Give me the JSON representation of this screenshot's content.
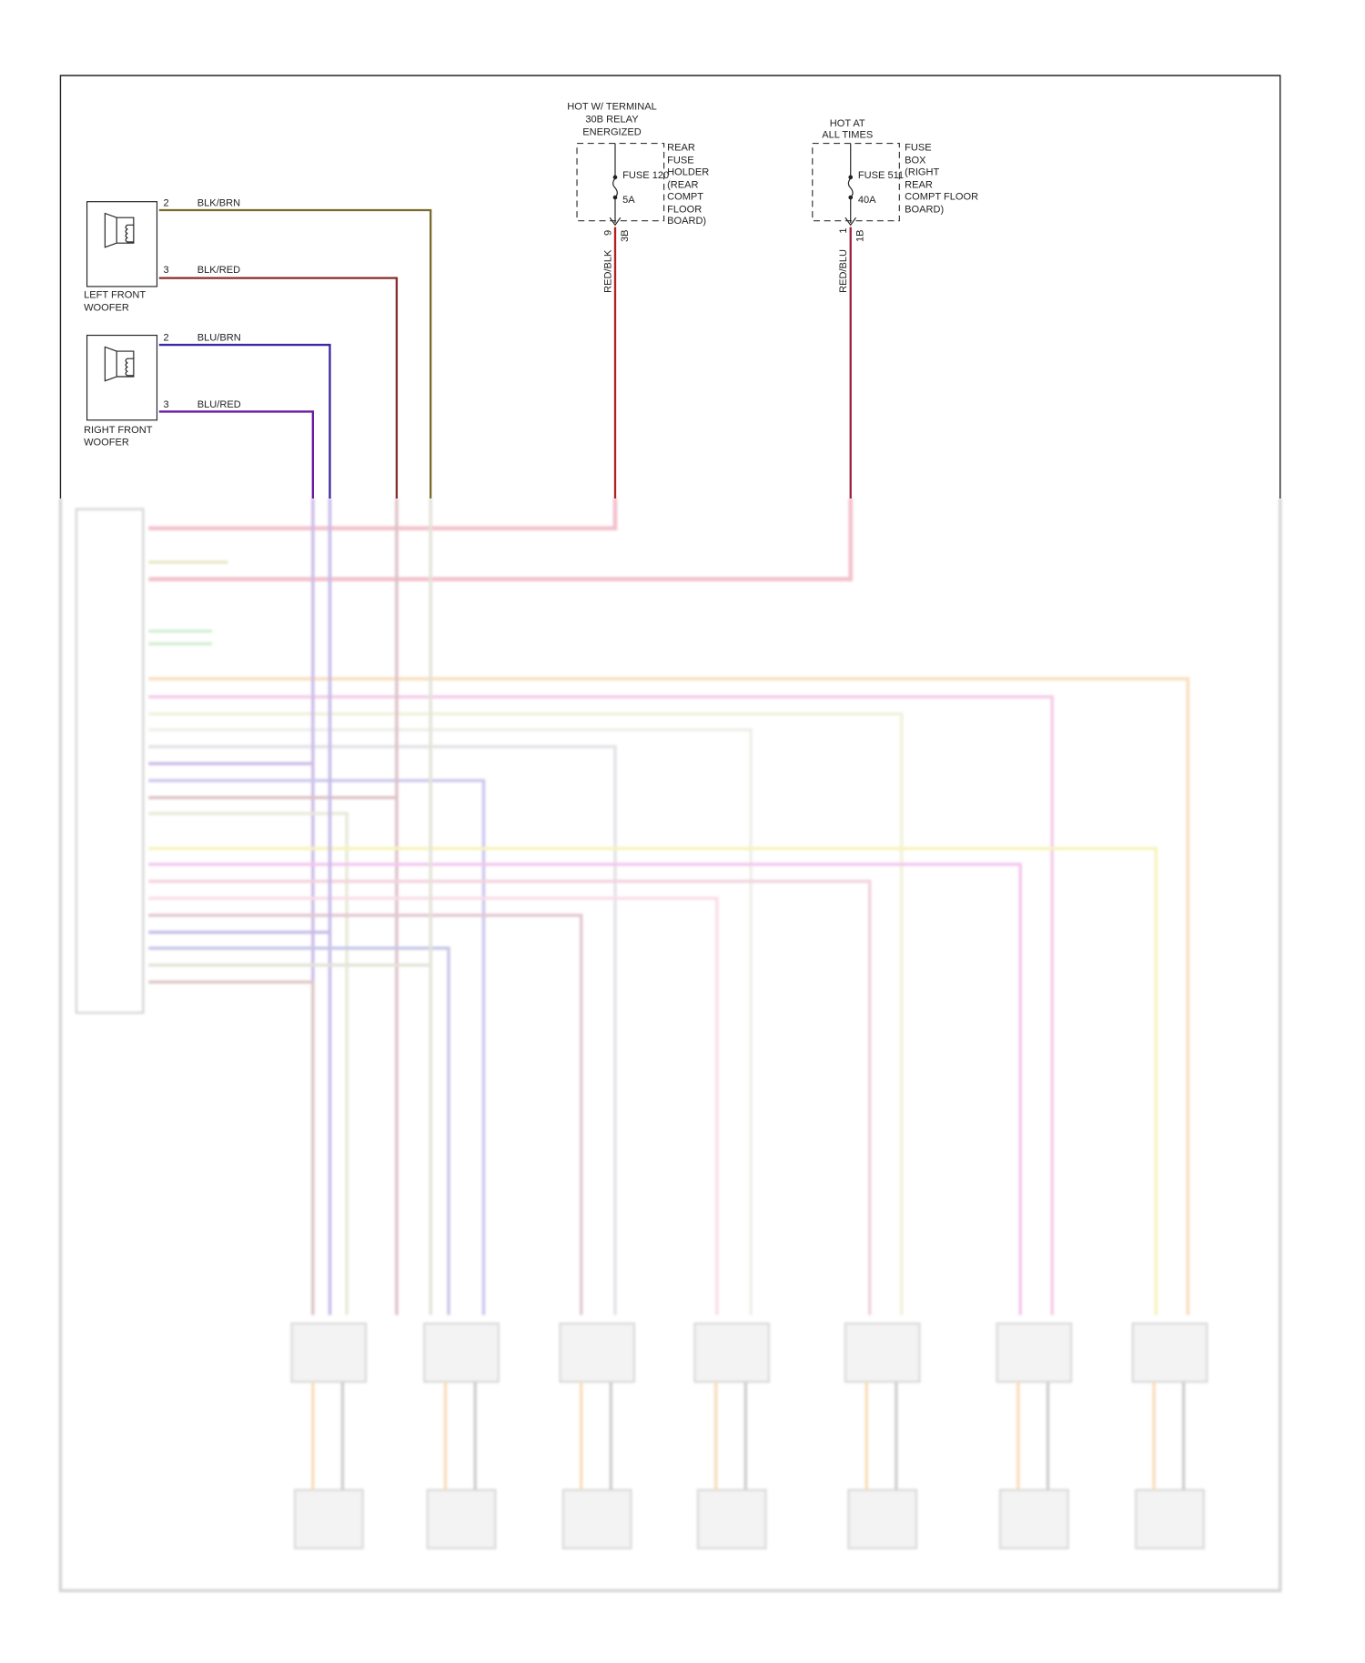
{
  "speakers": [
    {
      "label_line1": "LEFT FRONT",
      "label_line2": "WOOFER",
      "pins": [
        "2",
        "3"
      ],
      "wires": [
        "BLK/BRN",
        "BLK/RED"
      ]
    },
    {
      "label_line1": "RIGHT FRONT",
      "label_line2": "WOOFER",
      "pins": [
        "2",
        "3"
      ],
      "wires": [
        "BLU/BRN",
        "BLU/RED"
      ]
    }
  ],
  "fuses": [
    {
      "hot_lines": [
        "HOT W/ TERMINAL",
        "30B RELAY",
        "ENERGIZED"
      ],
      "fuse": "FUSE 120",
      "rating": "5A",
      "holder_lines": [
        "REAR",
        "FUSE",
        "HOLDER",
        "(REAR",
        "COMPT",
        "FLOOR",
        "BOARD)"
      ],
      "pin": "9",
      "connector": "3B",
      "wire": "RED/BLK"
    },
    {
      "hot_lines": [
        "HOT AT",
        "ALL TIMES"
      ],
      "fuse": "FUSE 511",
      "rating": "40A",
      "holder_lines": [
        "FUSE",
        "BOX",
        "(RIGHT",
        "REAR",
        "COMPT FLOOR",
        "BOARD)"
      ],
      "pin": "1",
      "connector": "1B",
      "wire": "RED/BLU"
    }
  ],
  "colors": {
    "blk_brn": "#7a6a2a",
    "blk_red": "#8a2a2a",
    "blu_brn": "#3a2aa0",
    "blu_red": "#6a1aa0",
    "red_blk": "#b02020",
    "red_blu": "#a02040"
  }
}
